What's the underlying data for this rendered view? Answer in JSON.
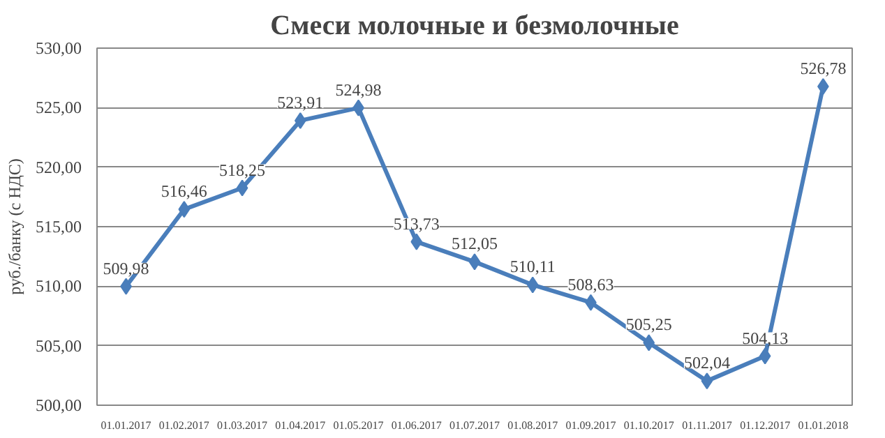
{
  "chart_data": {
    "type": "line",
    "title": "Смеси молочные и безмолочные",
    "ylabel": "руб./банку (с НДС)",
    "categories": [
      "01.01.2017",
      "01.02.2017",
      "01.03.2017",
      "01.04.2017",
      "01.05.2017",
      "01.06.2017",
      "01.07.2017",
      "01.08.2017",
      "01.09.2017",
      "01.10.2017",
      "01.11.2017",
      "01.12.2017",
      "01.01.2018"
    ],
    "series": [
      {
        "color": "#4a7ebb",
        "values": [
          509.98,
          516.46,
          518.25,
          523.91,
          524.98,
          513.73,
          512.05,
          510.11,
          508.63,
          505.25,
          502.04,
          504.13,
          526.78
        ],
        "value_labels": [
          "509,98",
          "516,46",
          "518,25",
          "523,91",
          "524,98",
          "513,73",
          "512,05",
          "510,11",
          "508,63",
          "505,25",
          "502,04",
          "504,13",
          "526,78"
        ]
      }
    ],
    "ylim": [
      500,
      530
    ],
    "yticks": [
      {
        "value": 500,
        "label": "500,00"
      },
      {
        "value": 505,
        "label": "505,00"
      },
      {
        "value": 510,
        "label": "510,00"
      },
      {
        "value": 515,
        "label": "515,00"
      },
      {
        "value": 520,
        "label": "520,00"
      },
      {
        "value": 525,
        "label": "525,00"
      },
      {
        "value": 530,
        "label": "530,00"
      }
    ],
    "grid": "y",
    "marker": "diamond",
    "line_style": "solid"
  }
}
